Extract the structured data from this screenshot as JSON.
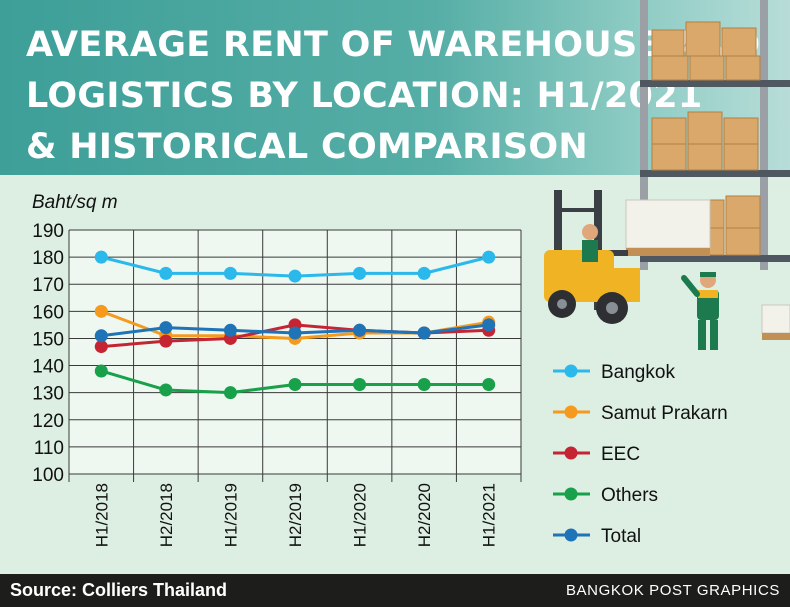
{
  "title_lines": [
    "AVERAGE RENT OF WAREHOUSE AND",
    "LOGISTICS BY LOCATION: H1/2021",
    "& HISTORICAL COMPARISON"
  ],
  "footer": {
    "source": "Source: Colliers Thailand",
    "credit": "BANGKOK POST GRAPHICS"
  },
  "colors": {
    "Bangkok": "#2bb8ea",
    "Samut Prakarn": "#f59a1c",
    "EEC": "#c52532",
    "Others": "#18a04a",
    "Total": "#1f73b7"
  },
  "chart_data": {
    "type": "line",
    "title": "AVERAGE RENT OF WAREHOUSE AND LOGISTICS BY LOCATION: H1/2021 & HISTORICAL COMPARISON",
    "ylabel": "Baht/sq m",
    "xlabel": "",
    "ylim": [
      100,
      190
    ],
    "yticks": [
      100,
      110,
      120,
      130,
      140,
      150,
      160,
      170,
      180,
      190
    ],
    "categories": [
      "H1/2018",
      "H2/2018",
      "H1/2019",
      "H2/2019",
      "H1/2020",
      "H2/2020",
      "H1/2021"
    ],
    "grid": true,
    "legend_position": "right",
    "series": [
      {
        "name": "Bangkok",
        "values": [
          180,
          174,
          174,
          173,
          174,
          174,
          180
        ]
      },
      {
        "name": "Samut Prakarn",
        "values": [
          160,
          151,
          151,
          150,
          152,
          152,
          156
        ]
      },
      {
        "name": "EEC",
        "values": [
          147,
          149,
          150,
          155,
          153,
          152,
          153
        ]
      },
      {
        "name": "Others",
        "values": [
          138,
          131,
          130,
          133,
          133,
          133,
          133
        ]
      },
      {
        "name": "Total",
        "values": [
          151,
          154,
          153,
          152,
          153,
          152,
          155
        ]
      }
    ]
  }
}
